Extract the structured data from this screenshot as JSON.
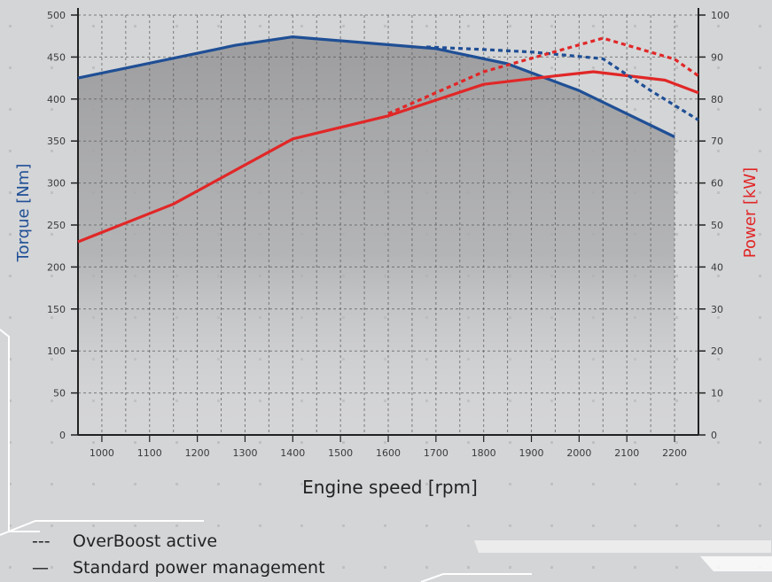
{
  "chart_data": {
    "type": "line",
    "x": [
      1000,
      1100,
      1200,
      1300,
      1400,
      1500,
      1600,
      1700,
      1800,
      1900,
      2000,
      2100,
      2200
    ],
    "xlabel": "Engine speed [rpm]",
    "ylabel_left": "Torque [Nm]",
    "ylabel_right": "Power [kW]",
    "ylim_left": [
      0,
      500
    ],
    "ylim_right": [
      0,
      100
    ],
    "yticks_left": [
      "0",
      "50",
      "100",
      "150",
      "200",
      "250",
      "300",
      "350",
      "400",
      "450",
      "500"
    ],
    "yticks_right": [
      "0",
      "10",
      "20",
      "30",
      "40",
      "50",
      "60",
      "70",
      "80",
      "90",
      "100"
    ],
    "grid": true,
    "series": [
      {
        "axis": "left",
        "style": "solid",
        "color": "#1f4f95",
        "points": [
          [
            950,
            425
          ],
          [
            1280,
            464
          ],
          [
            1400,
            474
          ],
          [
            1700,
            460
          ],
          [
            1850,
            442
          ],
          [
            2000,
            410
          ],
          [
            2200,
            355
          ]
        ]
      },
      {
        "axis": "right",
        "style": "solid",
        "color": "#e12727",
        "points": [
          [
            950,
            46
          ],
          [
            1150,
            55
          ],
          [
            1400,
            70.5
          ],
          [
            1600,
            76
          ],
          [
            1800,
            83.5
          ],
          [
            1950,
            85.5
          ],
          [
            2030,
            86.5
          ],
          [
            2180,
            84.5
          ],
          [
            2250,
            81.5
          ]
        ]
      },
      {
        "axis": "left",
        "style": "dashed",
        "color": "#1f4f95",
        "points": [
          [
            1680,
            462
          ],
          [
            1800,
            459
          ],
          [
            1900,
            456
          ],
          [
            2050,
            448
          ],
          [
            2150,
            410
          ],
          [
            2250,
            375
          ]
        ]
      },
      {
        "axis": "right",
        "style": "dashed",
        "color": "#e12727",
        "points": [
          [
            1600,
            76.5
          ],
          [
            1800,
            86.5
          ],
          [
            2050,
            94.5
          ],
          [
            2200,
            89.5
          ],
          [
            2250,
            85.5
          ]
        ]
      }
    ],
    "legend": {
      "placement": "bottom-left",
      "entries": [
        {
          "symbol": "---",
          "label": "OverBoost active"
        },
        {
          "symbol": "—",
          "label": "Standard power management"
        }
      ]
    }
  }
}
